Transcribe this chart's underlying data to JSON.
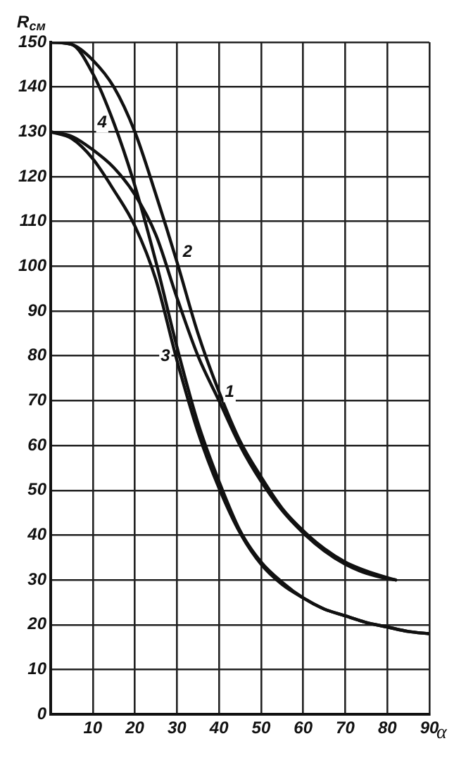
{
  "chart_data": {
    "type": "line",
    "xlabel": "α",
    "ylabel": "R$_{см}$",
    "x": [
      0,
      5,
      10,
      15,
      20,
      25,
      30,
      35,
      40,
      45,
      50,
      55,
      60,
      65,
      70,
      75,
      80,
      82
    ],
    "series": [
      {
        "name": "1",
        "color": "#111111",
        "values": [
          130,
          129,
          126,
          122,
          116,
          107,
          93,
          80,
          70,
          60,
          52,
          45.5,
          40.5,
          36.5,
          33.5,
          31.5,
          30.3,
          30
        ]
      },
      {
        "name": "2",
        "color": "#111111",
        "values": [
          150,
          149.5,
          146,
          140,
          130,
          116,
          101,
          85,
          72,
          61,
          53,
          46,
          41,
          37,
          34,
          32,
          30.5,
          30
        ]
      },
      {
        "name": "3",
        "color": "#111111",
        "x": [
          0,
          5,
          10,
          15,
          20,
          25,
          30,
          35,
          40,
          45,
          50,
          55,
          60,
          65,
          70,
          75,
          80,
          85,
          90
        ],
        "values": [
          130,
          128.5,
          124,
          117,
          109,
          97,
          79,
          63,
          50.5,
          40.5,
          33.5,
          29,
          26,
          23.5,
          22,
          20.5,
          19.5,
          18.5,
          18
        ]
      },
      {
        "name": "4",
        "color": "#111111",
        "x": [
          0,
          5,
          10,
          15,
          20,
          25,
          30,
          35,
          40,
          45,
          50,
          55,
          60,
          65,
          70,
          75,
          80,
          85,
          90
        ],
        "values": [
          150,
          149.5,
          143,
          132,
          118,
          101,
          82,
          65,
          52,
          41,
          34,
          29.5,
          26,
          23.5,
          22,
          20.5,
          19.5,
          18.5,
          18
        ]
      }
    ],
    "xlim": [
      0,
      90
    ],
    "ylim": [
      0,
      150
    ],
    "xticks": [
      {
        "value": 0,
        "label": null
      },
      10,
      20,
      30,
      40,
      50,
      60,
      70,
      80,
      90
    ],
    "yticks": [
      0,
      10,
      20,
      30,
      40,
      50,
      60,
      70,
      80,
      90,
      100,
      110,
      120,
      130,
      140,
      150
    ],
    "grid": true,
    "marker": "none",
    "line_style": "solid"
  }
}
